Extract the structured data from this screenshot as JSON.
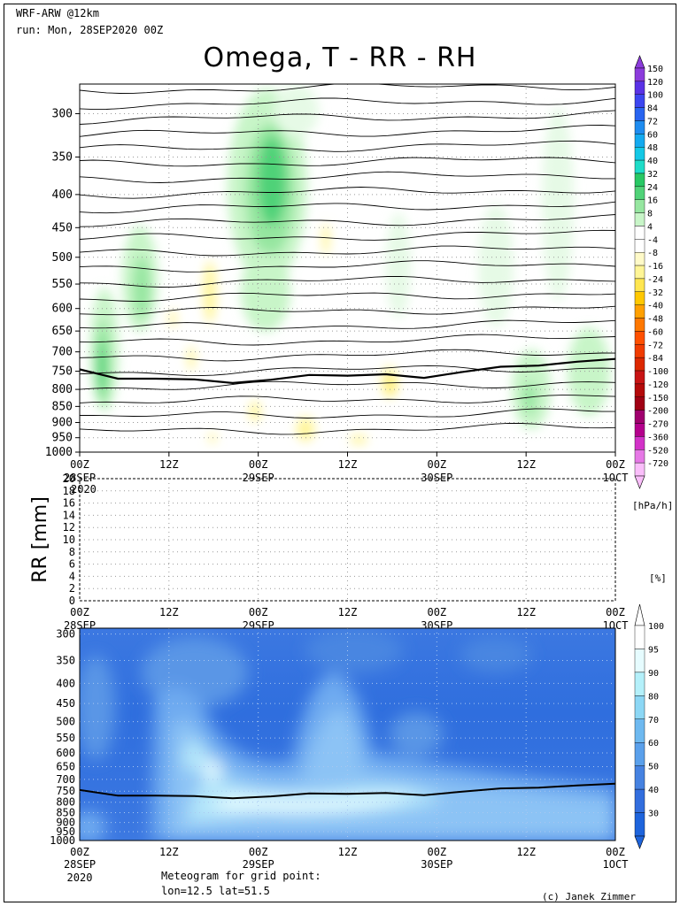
{
  "header": {
    "model": "WRF-ARW @12km",
    "run": "run: Mon, 28SEP2020 00Z"
  },
  "title": "Omega, T - RR - RH",
  "footer": {
    "meteogram_label": "Meteogram for grid point:",
    "grid_point": "lon=12.5 lat=51.5",
    "credit": "(c) Janek Zimmer"
  },
  "colors": {
    "accent": "#000000",
    "rh_dark": "#1e64dc",
    "rh_light": "#e6fcff"
  },
  "chart_data": [
    {
      "type": "heatmap",
      "name": "omega-temperature",
      "ylabel": "",
      "y_ticks": [
        300,
        350,
        400,
        450,
        500,
        550,
        600,
        650,
        700,
        750,
        800,
        850,
        900,
        950,
        1000
      ],
      "ylim": [
        1000,
        270
      ],
      "y_scale": "log",
      "x_ticks": [
        {
          "hour": "00Z",
          "date": "28SEP"
        },
        {
          "hour": "12Z",
          "date": ""
        },
        {
          "hour": "00Z",
          "date": "29SEP"
        },
        {
          "hour": "12Z",
          "date": ""
        },
        {
          "hour": "00Z",
          "date": "30SEP"
        },
        {
          "hour": "12Z",
          "date": ""
        },
        {
          "hour": "00Z",
          "date": "1OCT"
        }
      ],
      "x_year": "2020",
      "grid": true,
      "colorbar_unit": "[hPa/h]",
      "colorbar_levels": [
        "150",
        "120",
        "100",
        "84",
        "72",
        "60",
        "48",
        "40",
        "32",
        "24",
        "16",
        "8",
        "4",
        "-4",
        "-8",
        "-16",
        "-24",
        "-32",
        "-40",
        "-48",
        "-60",
        "-72",
        "-84",
        "-100",
        "-120",
        "-150",
        "-200",
        "-270",
        "-360",
        "-520",
        "-720"
      ],
      "colorbar_colors": [
        "#8c3cdc",
        "#5a32e6",
        "#3c46f0",
        "#2864f0",
        "#1e8cf0",
        "#14aaf0",
        "#14c8e6",
        "#1edcc8",
        "#28c864",
        "#50d278",
        "#96e6a0",
        "#c8f5c8",
        "#ffffff",
        "#ffffff",
        "#fffac8",
        "#fff596",
        "#ffe650",
        "#ffc800",
        "#ffa000",
        "#ff7800",
        "#ff5000",
        "#f03c00",
        "#dc2800",
        "#c81414",
        "#b40a0a",
        "#a00014",
        "#a0006e",
        "#b4008c",
        "#d232c8",
        "#e678e6",
        "#fabefa"
      ],
      "thick_line_pressure": [
        745,
        770,
        770,
        772,
        782,
        773,
        760,
        762,
        758,
        768,
        752,
        738,
        735,
        725,
        718
      ]
    },
    {
      "type": "bar",
      "name": "precipitation",
      "ylabel": "RR [mm]",
      "ylim": [
        0,
        20
      ],
      "y_ticks": [
        0,
        2,
        4,
        6,
        8,
        10,
        12,
        14,
        16,
        18,
        20
      ],
      "categories": [
        "00Z",
        "12Z",
        "00Z",
        "12Z",
        "00Z",
        "12Z",
        "00Z"
      ],
      "values": [
        0,
        0,
        0,
        0,
        0,
        0,
        0
      ],
      "grid": true,
      "overlap_label": "2020"
    },
    {
      "type": "heatmap",
      "name": "relative-humidity",
      "ylabel": "",
      "ylim": [
        1000,
        290
      ],
      "y_scale": "log",
      "y_ticks": [
        300,
        350,
        400,
        450,
        500,
        550,
        600,
        650,
        700,
        750,
        800,
        850,
        900,
        950,
        1000
      ],
      "colorbar_unit": "[%]",
      "colorbar_levels": [
        "100",
        "95",
        "90",
        "80",
        "70",
        "60",
        "50",
        "40",
        "30"
      ],
      "colorbar_colors": [
        "#ffffff",
        "#e6fcff",
        "#b4f0fa",
        "#8cd7f5",
        "#6eb9f0",
        "#5aa0eb",
        "#4682e1",
        "#326ede",
        "#1e64dc"
      ],
      "thick_line_pressure": [
        745,
        770,
        770,
        772,
        782,
        773,
        760,
        762,
        758,
        768,
        752,
        738,
        735,
        725,
        718
      ]
    }
  ]
}
